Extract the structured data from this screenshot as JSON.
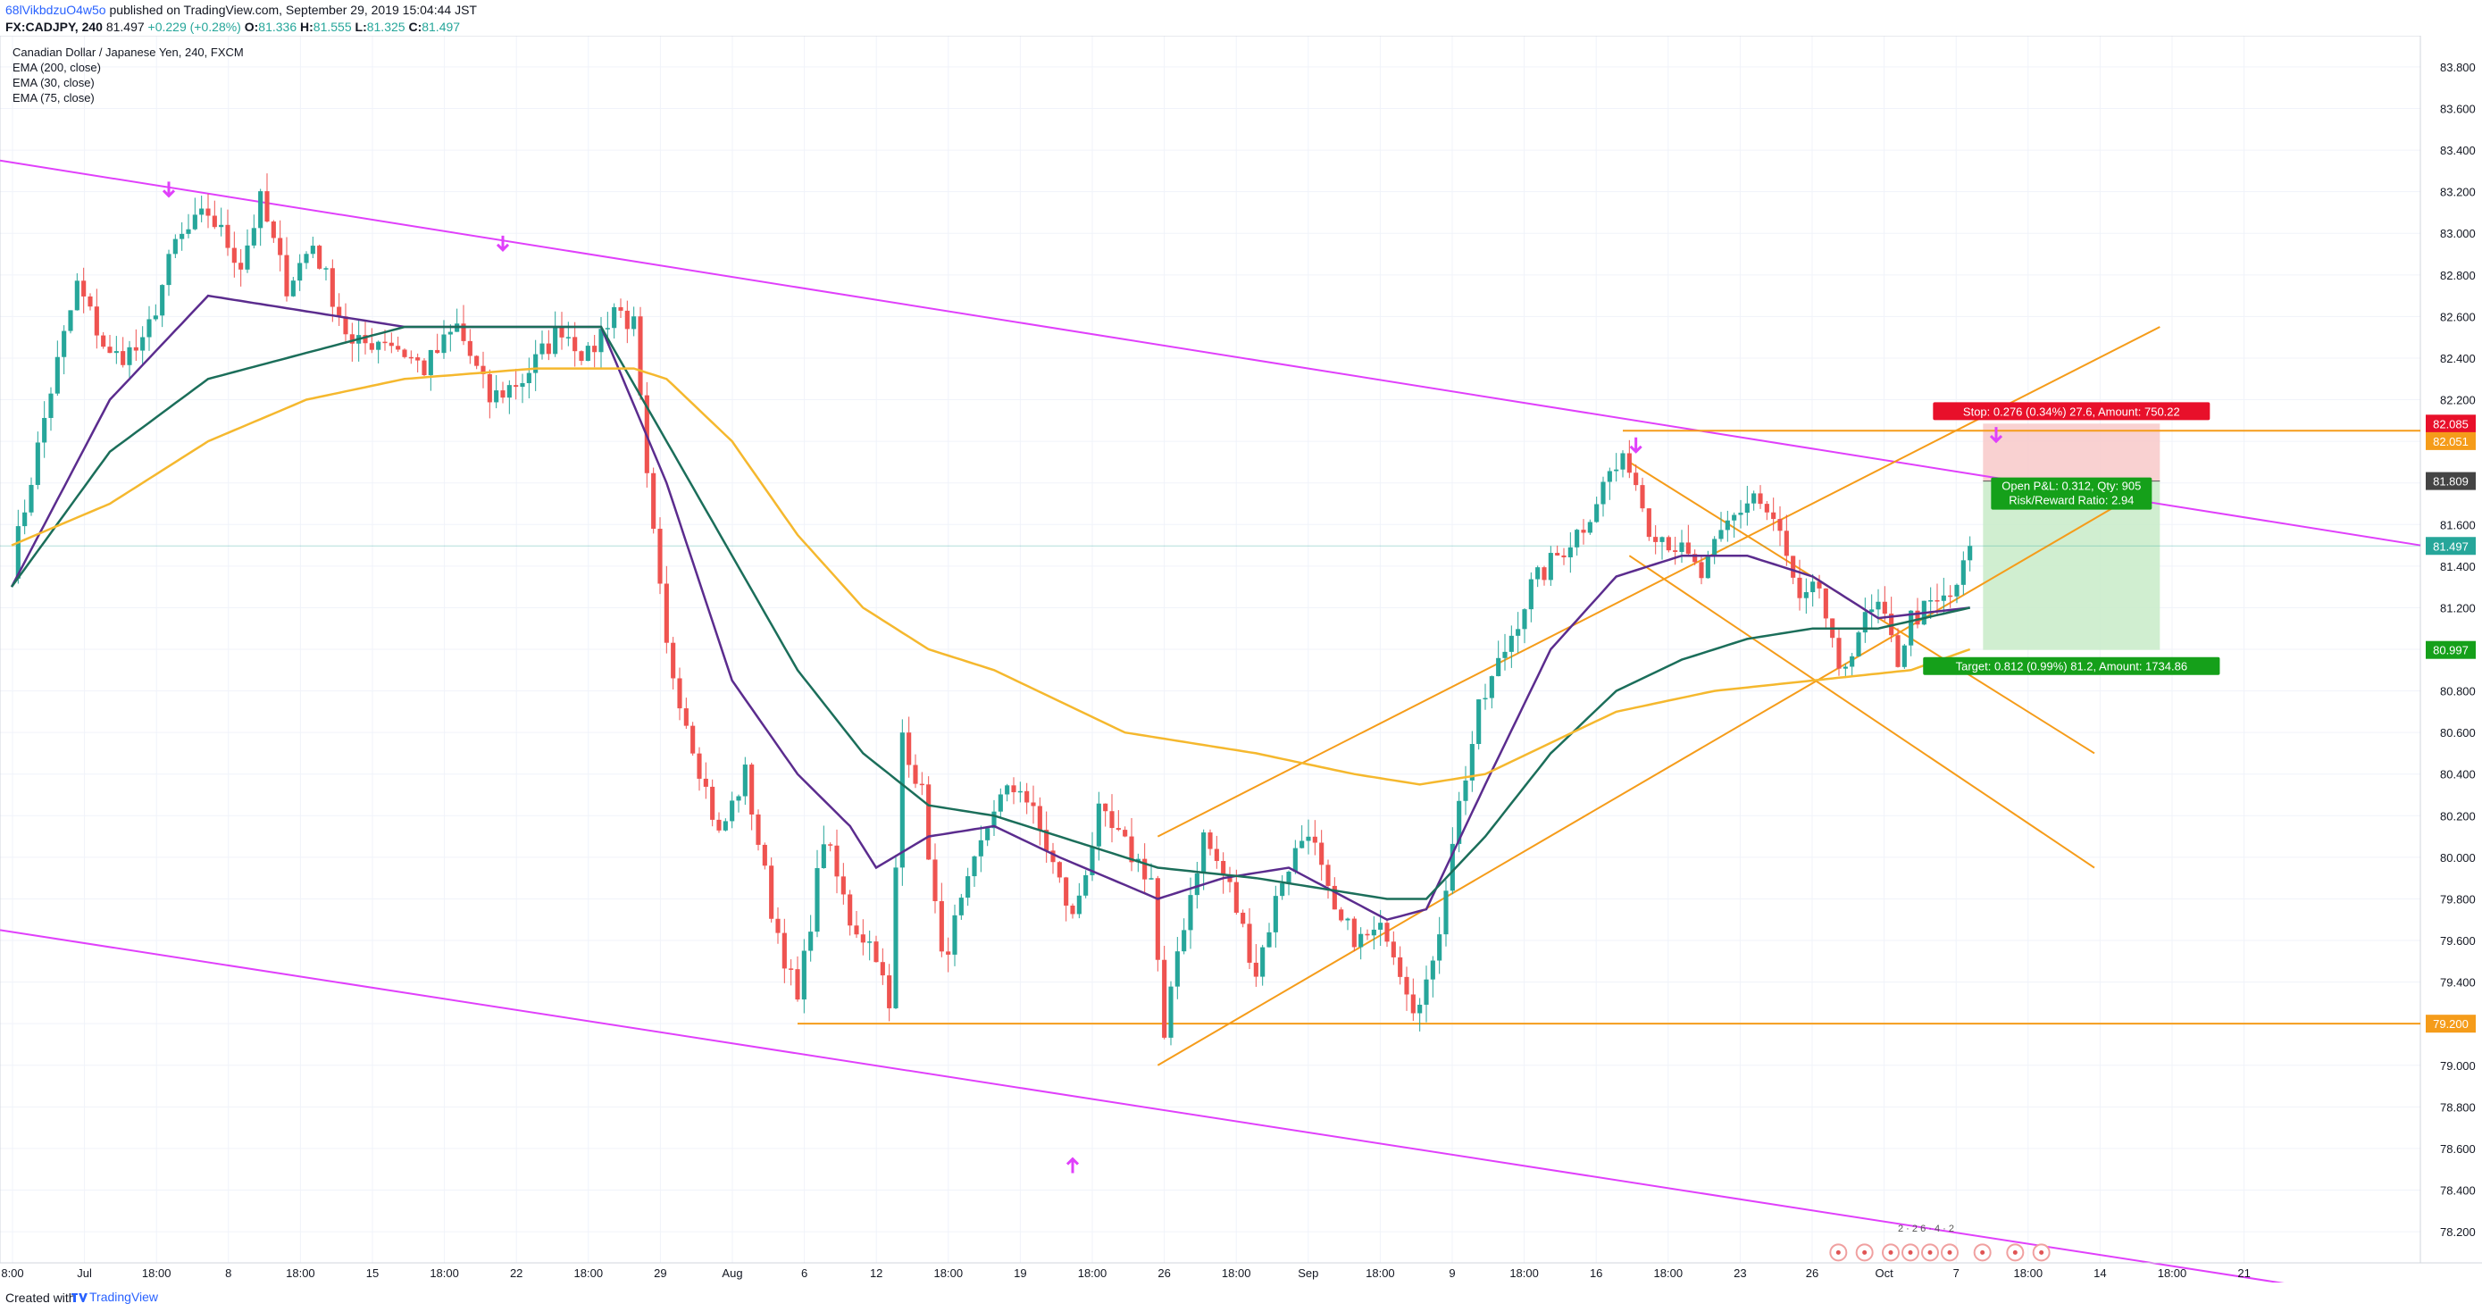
{
  "header": {
    "user": "68lVikbdzuO4w5o",
    "published": "published on TradingView.com, September 29, 2019 15:04:44 JST",
    "symbol": "FX:CADJPY, 240",
    "last": "81.497",
    "change": "+0.229 (+0.28%)",
    "o_label": "O:",
    "o_val": "81.336",
    "h_label": "H:",
    "h_val": "81.555",
    "l_label": "L:",
    "l_val": "81.325",
    "c_label": "C:",
    "c_val": "81.497"
  },
  "legend": {
    "title": "Canadian Dollar / Japanese Yen, 240, FXCM",
    "ema1": "EMA (200, close)",
    "ema2": "EMA (30, close)",
    "ema3": "EMA (75, close)"
  },
  "footer": {
    "created": "Created with",
    "brand": "TradingView"
  },
  "colors": {
    "up": "#26a69a",
    "down": "#ef5350",
    "ema200": "#f5b82e",
    "ema30": "#5b2c8e",
    "ema75": "#1b6e5a",
    "trend": "#e040fb",
    "channel": "#f59c1a",
    "level": "#f59c1a",
    "stop_zone": "#f8c9c9",
    "target_zone": "#c8ebc8"
  },
  "chart_data": {
    "type": "candlestick",
    "title": "Canadian Dollar / Japanese Yen, 240, FXCM",
    "ylim": [
      78.05,
      83.95
    ],
    "y_ticks": [
      78.2,
      78.4,
      78.6,
      78.8,
      79.0,
      79.2,
      79.4,
      79.6,
      79.8,
      80.0,
      80.2,
      80.4,
      80.6,
      80.8,
      81.0,
      81.2,
      81.4,
      81.6,
      81.8,
      82.0,
      82.2,
      82.4,
      82.6,
      82.8,
      83.0,
      83.2,
      83.4,
      83.6,
      83.8
    ],
    "x_tick_labels": [
      "8:00",
      "Jul",
      "18:00",
      "8",
      "18:00",
      "15",
      "18:00",
      "22",
      "18:00",
      "29",
      "Aug",
      "6",
      "12",
      "18:00",
      "19",
      "18:00",
      "26",
      "18:00",
      "Sep",
      "18:00",
      "9",
      "18:00",
      "16",
      "18:00",
      "23",
      "26",
      "Oct",
      "7",
      "18:00",
      "14",
      "18:00",
      "21"
    ],
    "price_labels": {
      "stop": "82.085",
      "entry_hi": "82.051",
      "open": "81.809",
      "last": "81.497",
      "target": "80.997",
      "support": "79.200"
    },
    "position": {
      "stop_text": "Stop: 0.276 (0.34%) 27.6, Amount: 750.22",
      "pnl_text": "Open P&L: 0.312, Qty: 905",
      "rr_text": "Risk/Reward Ratio: 2.94",
      "target_text": "Target: 0.812 (0.99%) 81.2, Amount: 1734.86",
      "entry": 81.809,
      "stop": 82.085,
      "target": 80.997
    },
    "support_level": 79.2,
    "resistance_level": 82.051,
    "close_price": 81.497,
    "marker_text": "2 · 2 6 · 4 · 2",
    "anchors": [
      [
        0,
        81.4
      ],
      [
        6,
        82.25
      ],
      [
        10,
        82.75
      ],
      [
        15,
        82.4
      ],
      [
        20,
        82.45
      ],
      [
        25,
        82.95
      ],
      [
        30,
        83.1
      ],
      [
        35,
        82.85
      ],
      [
        38,
        83.15
      ],
      [
        42,
        82.75
      ],
      [
        46,
        82.95
      ],
      [
        52,
        82.45
      ],
      [
        57,
        82.5
      ],
      [
        63,
        82.35
      ],
      [
        68,
        82.55
      ],
      [
        73,
        82.2
      ],
      [
        78,
        82.3
      ],
      [
        84,
        82.55
      ],
      [
        88,
        82.4
      ],
      [
        92,
        82.65
      ],
      [
        95,
        82.55
      ],
      [
        97,
        81.8
      ],
      [
        100,
        81.0
      ],
      [
        104,
        80.55
      ],
      [
        108,
        80.1
      ],
      [
        112,
        80.4
      ],
      [
        116,
        79.75
      ],
      [
        120,
        79.3
      ],
      [
        124,
        80.1
      ],
      [
        128,
        79.7
      ],
      [
        132,
        79.55
      ],
      [
        134,
        79.25
      ],
      [
        136,
        80.6
      ],
      [
        139,
        80.3
      ],
      [
        142,
        79.5
      ],
      [
        146,
        79.85
      ],
      [
        150,
        80.25
      ],
      [
        154,
        80.35
      ],
      [
        158,
        80.05
      ],
      [
        162,
        79.7
      ],
      [
        166,
        80.2
      ],
      [
        170,
        80.05
      ],
      [
        174,
        79.9
      ],
      [
        176,
        79.1
      ],
      [
        178,
        79.55
      ],
      [
        182,
        80.1
      ],
      [
        186,
        79.85
      ],
      [
        190,
        79.45
      ],
      [
        194,
        79.9
      ],
      [
        198,
        80.15
      ],
      [
        202,
        79.7
      ],
      [
        206,
        79.6
      ],
      [
        210,
        79.65
      ],
      [
        214,
        79.3
      ],
      [
        217,
        79.45
      ],
      [
        220,
        80.1
      ],
      [
        224,
        80.7
      ],
      [
        228,
        81.0
      ],
      [
        232,
        81.3
      ],
      [
        236,
        81.45
      ],
      [
        240,
        81.6
      ],
      [
        244,
        81.85
      ],
      [
        247,
        81.9
      ],
      [
        250,
        81.6
      ],
      [
        254,
        81.5
      ],
      [
        258,
        81.35
      ],
      [
        262,
        81.6
      ],
      [
        266,
        81.75
      ],
      [
        270,
        81.55
      ],
      [
        273,
        81.2
      ],
      [
        276,
        81.3
      ],
      [
        279,
        80.85
      ],
      [
        282,
        81.1
      ],
      [
        285,
        81.2
      ],
      [
        288,
        80.95
      ],
      [
        290,
        81.15
      ],
      [
        293,
        81.2
      ],
      [
        296,
        81.25
      ],
      [
        299,
        81.45
      ]
    ],
    "series": [
      {
        "name": "EMA (30, close)",
        "values": [
          [
            0,
            81.3
          ],
          [
            15,
            82.2
          ],
          [
            30,
            82.7
          ],
          [
            60,
            82.55
          ],
          [
            90,
            82.55
          ],
          [
            100,
            81.8
          ],
          [
            110,
            80.85
          ],
          [
            120,
            80.4
          ],
          [
            128,
            80.15
          ],
          [
            132,
            79.95
          ],
          [
            140,
            80.1
          ],
          [
            150,
            80.15
          ],
          [
            160,
            80.0
          ],
          [
            175,
            79.8
          ],
          [
            185,
            79.9
          ],
          [
            195,
            79.95
          ],
          [
            210,
            79.7
          ],
          [
            216,
            79.75
          ],
          [
            225,
            80.35
          ],
          [
            235,
            81.0
          ],
          [
            245,
            81.35
          ],
          [
            255,
            81.45
          ],
          [
            265,
            81.45
          ],
          [
            275,
            81.35
          ],
          [
            285,
            81.15
          ],
          [
            299,
            81.2
          ]
        ]
      },
      {
        "name": "EMA (75, close)",
        "values": [
          [
            0,
            81.3
          ],
          [
            15,
            81.95
          ],
          [
            30,
            82.3
          ],
          [
            60,
            82.55
          ],
          [
            90,
            82.55
          ],
          [
            100,
            82.0
          ],
          [
            110,
            81.45
          ],
          [
            120,
            80.9
          ],
          [
            130,
            80.5
          ],
          [
            140,
            80.25
          ],
          [
            150,
            80.2
          ],
          [
            160,
            80.1
          ],
          [
            175,
            79.95
          ],
          [
            190,
            79.9
          ],
          [
            210,
            79.8
          ],
          [
            216,
            79.8
          ],
          [
            225,
            80.1
          ],
          [
            235,
            80.5
          ],
          [
            245,
            80.8
          ],
          [
            255,
            80.95
          ],
          [
            265,
            81.05
          ],
          [
            275,
            81.1
          ],
          [
            285,
            81.1
          ],
          [
            299,
            81.2
          ]
        ]
      },
      {
        "name": "EMA (200, close)",
        "values": [
          [
            0,
            81.5
          ],
          [
            15,
            81.7
          ],
          [
            30,
            82.0
          ],
          [
            45,
            82.2
          ],
          [
            60,
            82.3
          ],
          [
            80,
            82.35
          ],
          [
            95,
            82.35
          ],
          [
            100,
            82.3
          ],
          [
            110,
            82.0
          ],
          [
            120,
            81.55
          ],
          [
            130,
            81.2
          ],
          [
            140,
            81.0
          ],
          [
            150,
            80.9
          ],
          [
            160,
            80.75
          ],
          [
            170,
            80.6
          ],
          [
            180,
            80.55
          ],
          [
            190,
            80.5
          ],
          [
            205,
            80.4
          ],
          [
            215,
            80.35
          ],
          [
            225,
            80.4
          ],
          [
            235,
            80.55
          ],
          [
            245,
            80.7
          ],
          [
            260,
            80.8
          ],
          [
            275,
            80.85
          ],
          [
            290,
            80.9
          ],
          [
            299,
            81.0
          ]
        ]
      }
    ]
  }
}
